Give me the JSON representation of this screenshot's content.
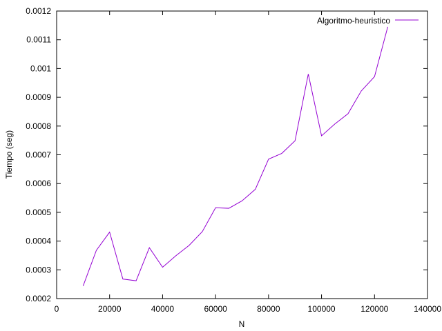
{
  "chart_data": {
    "type": "line",
    "title": "",
    "xlabel": "N",
    "ylabel": "Tiempo (seg)",
    "xlim": [
      0,
      140000
    ],
    "ylim": [
      0.0002,
      0.0012
    ],
    "x_ticks": [
      0,
      20000,
      40000,
      60000,
      80000,
      100000,
      120000,
      140000
    ],
    "x_tick_labels": [
      "0",
      "20000",
      "40000",
      "60000",
      "80000",
      "100000",
      "120000",
      "140000"
    ],
    "y_ticks": [
      0.0002,
      0.0003,
      0.0004,
      0.0005,
      0.0006,
      0.0007,
      0.0008,
      0.0009,
      0.001,
      0.0011,
      0.0012
    ],
    "y_tick_labels": [
      "0.0002",
      "0.0003",
      "0.0004",
      "0.0005",
      "0.0006",
      "0.0007",
      "0.0008",
      "0.0009",
      "0.001",
      "0.0011",
      "0.0012"
    ],
    "grid": false,
    "legend_position": "top-right",
    "series": [
      {
        "name": "Algoritmo-heuristico",
        "color": "#9400d3",
        "x": [
          10000,
          15000,
          20000,
          25000,
          30000,
          35000,
          40000,
          45000,
          50000,
          55000,
          60000,
          65000,
          70000,
          75000,
          80000,
          85000,
          90000,
          95000,
          100000,
          105000,
          110000,
          115000,
          120000,
          125000
        ],
        "y": [
          0.000244,
          0.000368,
          0.000431,
          0.000268,
          0.000262,
          0.000377,
          0.000309,
          0.000349,
          0.000385,
          0.000433,
          0.000516,
          0.000514,
          0.00054,
          0.00058,
          0.000685,
          0.000705,
          0.000749,
          0.000981,
          0.000766,
          0.000807,
          0.000843,
          0.000922,
          0.000972,
          0.001145
        ]
      }
    ]
  }
}
